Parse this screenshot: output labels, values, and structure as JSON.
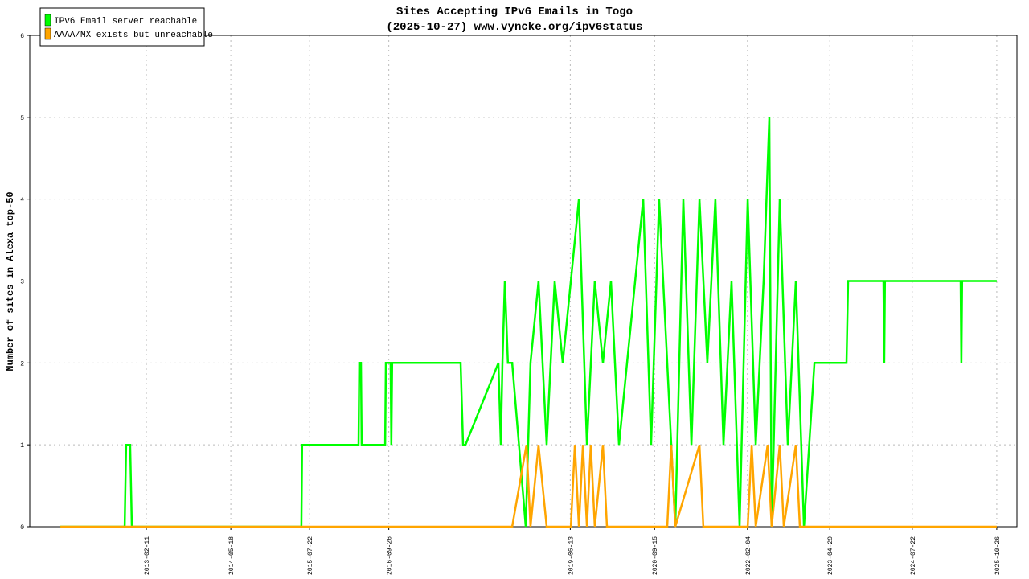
{
  "chart_data": {
    "type": "line",
    "title": "Sites Accepting IPv6 Emails in Togo",
    "subtitle": "(2025-10-27) www.vyncke.org/ipv6status",
    "y_label": "Number of sites in Alexa top-50",
    "xlim": [
      "2011-05-17",
      "2026-02-13"
    ],
    "xticks": [
      "2013-02-11",
      "2014-05-18",
      "2015-07-22",
      "2016-09-26",
      "2019-06-13",
      "2020-09-15",
      "2022-02-04",
      "2023-04-29",
      "2024-07-22",
      "2025-10-26"
    ],
    "ylim": [
      0,
      6
    ],
    "yticks": [
      0,
      1,
      2,
      3,
      4,
      5,
      6
    ],
    "grid": true,
    "legend": "top-left",
    "series": [
      {
        "name": "IPv6 Email server reachable",
        "color": "#00ff00",
        "x": [
          "2011-10-31",
          "2012-10-16",
          "2012-10-24",
          "2012-11-15",
          "2012-11-24",
          "2015-06-07",
          "2015-06-11",
          "2016-04-14",
          "2016-04-18",
          "2016-04-27",
          "2016-05-01",
          "2016-09-06",
          "2016-09-10",
          "2016-10-06",
          "2016-10-10",
          "2016-10-14",
          "2017-10-23",
          "2017-11-05",
          "2017-11-18",
          "2018-05-17",
          "2018-05-30",
          "2018-06-08",
          "2018-06-21",
          "2018-07-08",
          "2018-07-31",
          "2018-10-13",
          "2018-11-08",
          "2018-12-22",
          "2019-02-04",
          "2019-03-20",
          "2019-05-03",
          "2019-06-16",
          "2019-07-30",
          "2019-09-12",
          "2019-10-25",
          "2019-12-08",
          "2020-01-21",
          "2020-03-05",
          "2020-04-18",
          "2020-06-01",
          "2020-07-15",
          "2020-08-27",
          "2020-10-10",
          "2020-11-23",
          "2021-01-06",
          "2021-02-19",
          "2021-04-04",
          "2021-05-18",
          "2021-06-30",
          "2021-08-13",
          "2021-09-26",
          "2021-11-09",
          "2021-12-23",
          "2022-02-05",
          "2022-03-21",
          "2022-05-03",
          "2022-06-03",
          "2022-06-16",
          "2022-07-30",
          "2022-09-12",
          "2022-10-26",
          "2022-12-09",
          "2023-02-04",
          "2023-07-29",
          "2023-08-07",
          "2024-02-16",
          "2024-02-20",
          "2024-02-24",
          "2025-04-12",
          "2025-04-16",
          "2025-04-20",
          "2025-10-26"
        ],
        "values": [
          0,
          0,
          1,
          1,
          0,
          0,
          1,
          1,
          2,
          2,
          1,
          1,
          2,
          2,
          1,
          2,
          2,
          1,
          1,
          2,
          1,
          2,
          3,
          2,
          2,
          0,
          2,
          3,
          1,
          3,
          2,
          3,
          4,
          1,
          3,
          2,
          3,
          1,
          2,
          3,
          4,
          1,
          4,
          2,
          0,
          4,
          1,
          4,
          2,
          4,
          1,
          3,
          0,
          4,
          1,
          3,
          5,
          0,
          4,
          1,
          3,
          0,
          2,
          2,
          3,
          3,
          2,
          3,
          3,
          2,
          3,
          3
        ]
      },
      {
        "name": "AAAA/MX exists but unreachable",
        "color": "#ffa500",
        "x": [
          "2011-10-31",
          "2018-07-31",
          "2018-10-17",
          "2018-11-08",
          "2018-12-22",
          "2019-02-04",
          "2019-06-16",
          "2019-07-08",
          "2019-07-30",
          "2019-08-21",
          "2019-09-12",
          "2019-10-03",
          "2019-10-25",
          "2019-12-08",
          "2019-12-30",
          "2020-11-23",
          "2020-12-15",
          "2021-01-06",
          "2021-05-18",
          "2021-06-08",
          "2022-02-05",
          "2022-02-27",
          "2022-03-21",
          "2022-05-25",
          "2022-06-16",
          "2022-07-30",
          "2022-08-21",
          "2022-10-26",
          "2022-11-17",
          "2025-10-26"
        ],
        "values": [
          0,
          0,
          1,
          0,
          1,
          0,
          0,
          1,
          0,
          1,
          0,
          1,
          0,
          1,
          0,
          0,
          1,
          0,
          1,
          0,
          0,
          1,
          0,
          1,
          0,
          1,
          0,
          1,
          0,
          0
        ]
      }
    ]
  }
}
